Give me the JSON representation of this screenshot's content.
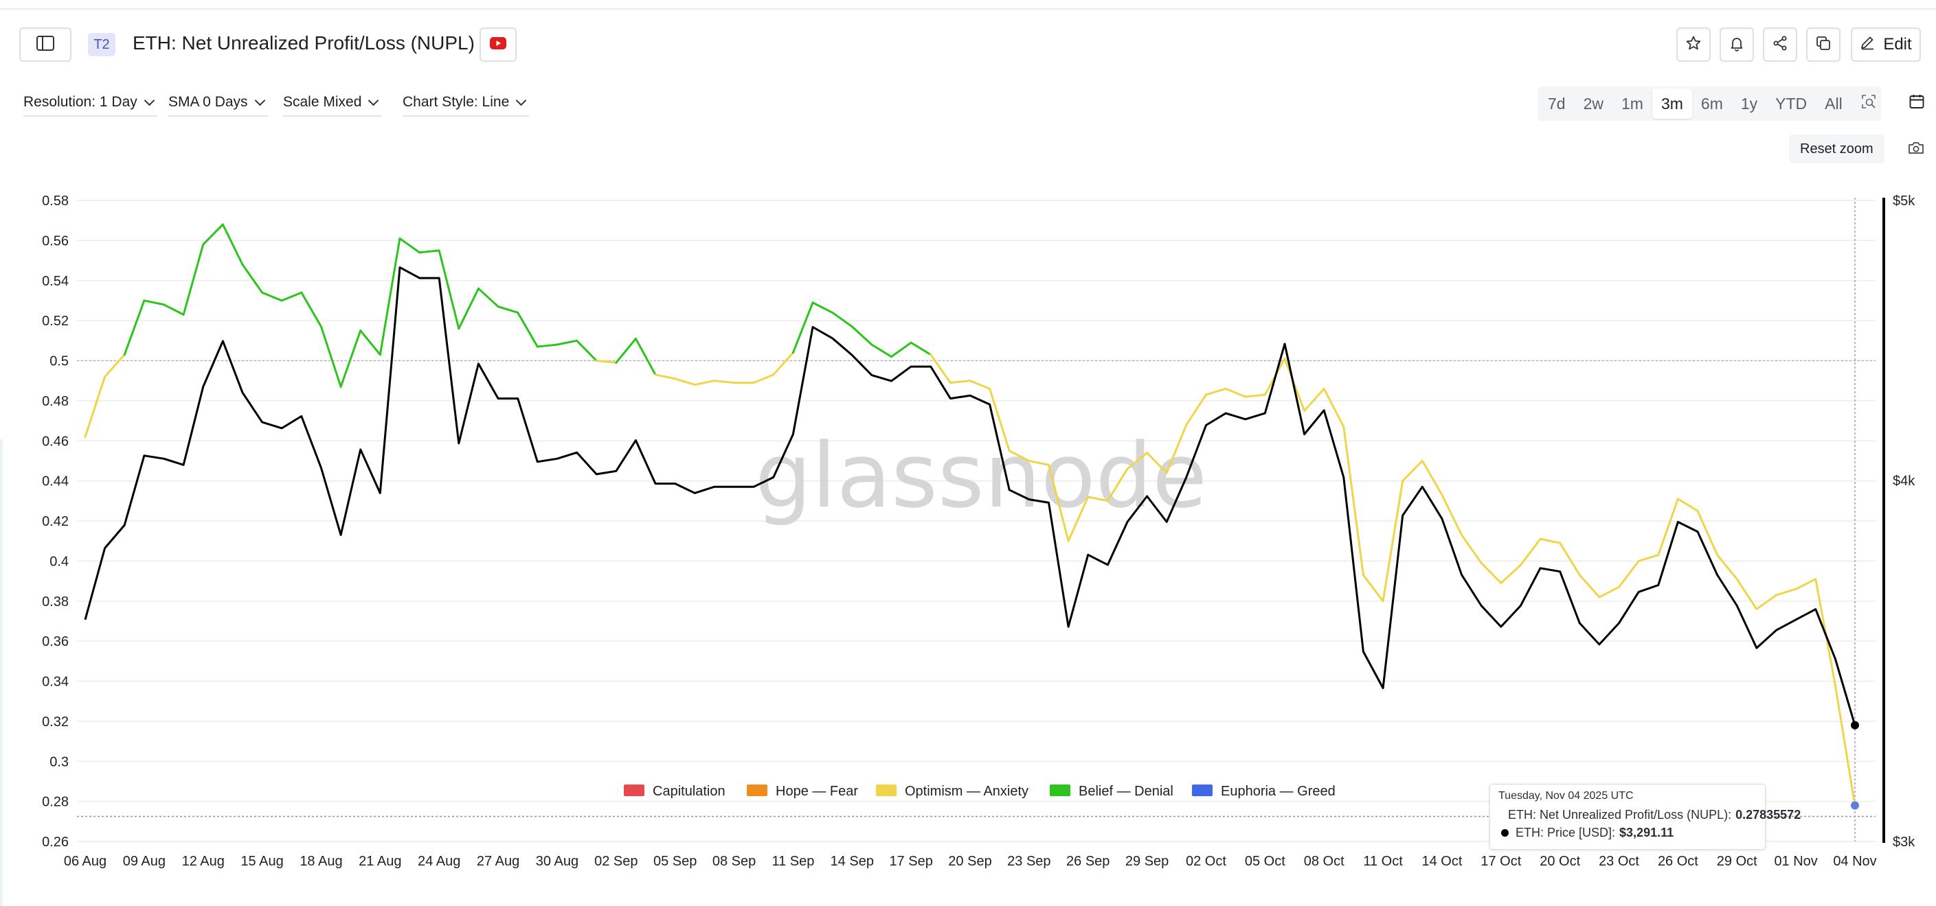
{
  "header": {
    "tier": "T2",
    "title": "ETH: Net Unrealized Profit/Loss (NUPL)",
    "edit_label": "Edit"
  },
  "toolbar": {
    "resolution": "Resolution: 1 Day",
    "sma": "SMA 0 Days",
    "scale": "Scale Mixed",
    "chart_style": "Chart Style: Line",
    "ranges": [
      "7d",
      "2w",
      "1m",
      "3m",
      "6m",
      "1y",
      "YTD",
      "All"
    ],
    "active_range": "3m",
    "reset_zoom": "Reset zoom"
  },
  "colors": {
    "capitulation": "#e5484d",
    "hope_fear": "#f08c1c",
    "optimism_anxiety": "#f0d54a",
    "belief_denial": "#2ec41e",
    "euphoria_greed": "#4067e6",
    "price": "#000000",
    "youtube": "#e01e1e"
  },
  "icons": {
    "sidebar": "sidebar-toggle-icon",
    "youtube": "youtube-icon",
    "star": "star-icon",
    "bell": "bell-icon",
    "share": "share-icon",
    "copy": "copy-icon",
    "edit": "pencil-icon",
    "zoom": "zoom-search-icon",
    "calendar": "calendar-icon",
    "camera": "camera-icon"
  },
  "watermark": "glassnode",
  "tooltip": {
    "date": "Tuesday, Nov 04 2025 UTC",
    "rows": [
      {
        "label": "ETH: Net Unrealized Profit/Loss (NUPL):",
        "value": "0.27835572"
      },
      {
        "label": "ETH: Price [USD]:",
        "value": "$3,291.11"
      }
    ]
  },
  "chart_data": {
    "type": "line",
    "x_tick_labels": [
      "06 Aug",
      "09 Aug",
      "12 Aug",
      "15 Aug",
      "18 Aug",
      "21 Aug",
      "24 Aug",
      "27 Aug",
      "30 Aug",
      "02 Sep",
      "05 Sep",
      "08 Sep",
      "11 Sep",
      "14 Sep",
      "17 Sep",
      "20 Sep",
      "23 Sep",
      "26 Sep",
      "29 Sep",
      "02 Oct",
      "05 Oct",
      "08 Oct",
      "11 Oct",
      "14 Oct",
      "17 Oct",
      "20 Oct",
      "23 Oct",
      "26 Oct",
      "29 Oct",
      "01 Nov",
      "04 Nov"
    ],
    "y_left_ticks": [
      "0.26",
      "0.28",
      "0.3",
      "0.32",
      "0.34",
      "0.36",
      "0.38",
      "0.4",
      "0.42",
      "0.44",
      "0.46",
      "0.48",
      "0.5",
      "0.52",
      "0.54",
      "0.56",
      "0.58"
    ],
    "y_left_range": [
      0.26,
      0.58
    ],
    "y_right_ticks": [
      "$3k",
      "$4k",
      "$5k"
    ],
    "y_right_range": [
      3000,
      5000
    ],
    "y_right_scale": "log",
    "reference_line": 0.5,
    "grid": true,
    "legend_position": "bottom-center",
    "legend": [
      "Capitulation",
      "Hope — Fear",
      "Optimism — Anxiety",
      "Belief — Denial",
      "Euphoria — Greed"
    ],
    "series": [
      {
        "name": "ETH: Net Unrealized Profit/Loss (NUPL)",
        "values": [
          0.462,
          0.492,
          0.503,
          0.53,
          0.528,
          0.523,
          0.558,
          0.568,
          0.548,
          0.534,
          0.53,
          0.534,
          0.517,
          0.487,
          0.515,
          0.503,
          0.561,
          0.554,
          0.555,
          0.516,
          0.536,
          0.527,
          0.524,
          0.507,
          0.508,
          0.51,
          0.5,
          0.499,
          0.511,
          0.493,
          0.491,
          0.488,
          0.49,
          0.489,
          0.489,
          0.493,
          0.504,
          0.529,
          0.524,
          0.517,
          0.508,
          0.502,
          0.509,
          0.503,
          0.489,
          0.49,
          0.486,
          0.455,
          0.45,
          0.448,
          0.41,
          0.432,
          0.43,
          0.446,
          0.454,
          0.444,
          0.468,
          0.483,
          0.486,
          0.482,
          0.483,
          0.501,
          0.475,
          0.486,
          0.467,
          0.393,
          0.38,
          0.44,
          0.45,
          0.433,
          0.413,
          0.399,
          0.389,
          0.398,
          0.411,
          0.409,
          0.393,
          0.382,
          0.387,
          0.4,
          0.403,
          0.431,
          0.425,
          0.403,
          0.391,
          0.376,
          0.383,
          0.386,
          0.391,
          0.338,
          0.278
        ]
      },
      {
        "name": "ETH: Price [USD]",
        "values": [
          3580,
          3790,
          3860,
          4080,
          4070,
          4050,
          4310,
          4470,
          4290,
          4190,
          4170,
          4210,
          4040,
          3830,
          4100,
          3960,
          4740,
          4700,
          4700,
          4120,
          4390,
          4270,
          4270,
          4060,
          4070,
          4090,
          4020,
          4030,
          4130,
          3990,
          3990,
          3960,
          3980,
          3980,
          3980,
          4010,
          4150,
          4520,
          4480,
          4420,
          4350,
          4330,
          4380,
          4380,
          4270,
          4280,
          4250,
          3970,
          3940,
          3930,
          3560,
          3770,
          3740,
          3870,
          3950,
          3870,
          4010,
          4180,
          4220,
          4200,
          4220,
          4460,
          4150,
          4230,
          4010,
          3490,
          3390,
          3890,
          3980,
          3880,
          3710,
          3620,
          3560,
          3620,
          3730,
          3720,
          3570,
          3510,
          3570,
          3660,
          3680,
          3870,
          3840,
          3710,
          3620,
          3500,
          3550,
          3580,
          3610,
          3470,
          3291.11
        ]
      }
    ]
  }
}
